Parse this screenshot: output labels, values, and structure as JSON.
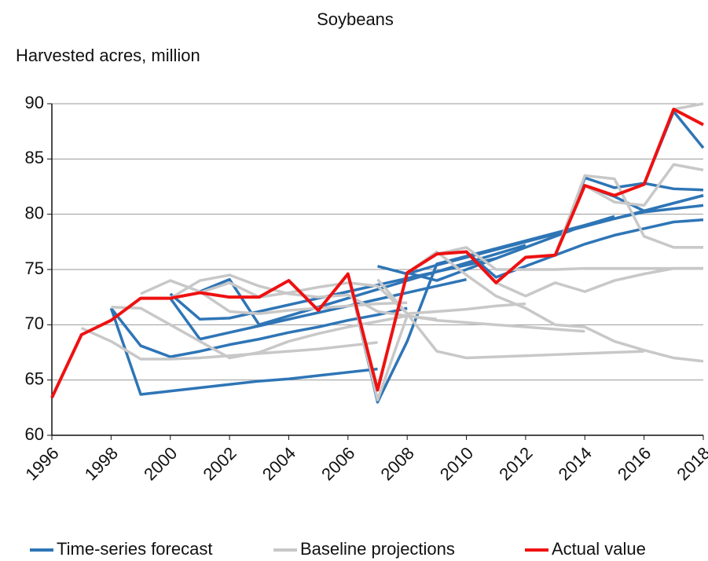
{
  "chart_data": {
    "type": "line",
    "title": "Soybeans",
    "y_label": "Harvested acres, million",
    "x": [
      1996,
      1997,
      1998,
      1999,
      2000,
      2001,
      2002,
      2003,
      2004,
      2005,
      2006,
      2007,
      2008,
      2009,
      2010,
      2011,
      2012,
      2013,
      2014,
      2015,
      2016,
      2017,
      2018
    ],
    "xlim": [
      1996,
      2018
    ],
    "xticks": [
      1996,
      1998,
      2000,
      2002,
      2004,
      2006,
      2008,
      2010,
      2012,
      2014,
      2016,
      2018
    ],
    "ylim": [
      60,
      90
    ],
    "yticks": [
      60,
      65,
      70,
      75,
      80,
      85,
      90
    ],
    "grid": true,
    "legend": "bottom",
    "series": [
      {
        "name": "Time-series forecast",
        "color": "#2e75b6",
        "lines": [
          [
            null,
            null,
            71.5,
            63.7,
            64.0,
            64.3,
            64.6,
            64.9,
            65.1,
            65.4,
            65.7,
            66.0,
            null,
            null,
            null,
            null,
            null,
            null,
            null,
            null,
            null,
            null,
            null
          ],
          [
            null,
            null,
            71.5,
            68.1,
            67.1,
            67.6,
            68.2,
            68.7,
            69.3,
            69.8,
            70.4,
            70.9,
            71.5,
            null,
            null,
            null,
            null,
            null,
            null,
            null,
            null,
            null,
            null
          ],
          [
            null,
            null,
            null,
            72.4,
            72.4,
            68.7,
            69.3,
            69.9,
            70.5,
            71.1,
            71.7,
            72.3,
            72.9,
            73.5,
            74.1,
            null,
            null,
            null,
            null,
            null,
            null,
            null,
            null
          ],
          [
            null,
            null,
            null,
            null,
            72.8,
            70.5,
            70.6,
            71.2,
            71.8,
            72.4,
            73.0,
            73.6,
            74.2,
            74.8,
            75.4,
            76.0,
            null,
            null,
            null,
            null,
            null,
            null,
            null
          ],
          [
            null,
            null,
            null,
            null,
            null,
            73.0,
            74.1,
            70.0,
            70.8,
            71.6,
            72.4,
            73.2,
            74.0,
            74.8,
            75.6,
            76.4,
            77.2,
            null,
            null,
            null,
            null,
            null,
            null
          ],
          [
            null,
            null,
            null,
            null,
            null,
            null,
            null,
            null,
            null,
            null,
            74.6,
            63.0,
            68.5,
            75.5,
            76.2,
            76.9,
            77.6,
            78.3,
            79.0,
            79.6,
            80.2,
            80.5,
            80.8
          ],
          [
            null,
            null,
            null,
            null,
            null,
            null,
            null,
            null,
            null,
            null,
            null,
            75.3,
            74.6,
            75.4,
            76.1,
            76.8,
            77.5,
            78.2,
            78.9,
            79.6,
            80.3,
            81.0,
            81.7
          ],
          [
            null,
            null,
            null,
            null,
            null,
            null,
            null,
            null,
            null,
            null,
            null,
            null,
            74.7,
            74.0,
            75.0,
            76.0,
            77.0,
            78.0,
            79.0,
            79.8,
            null,
            null,
            null
          ],
          [
            null,
            null,
            null,
            null,
            null,
            null,
            null,
            null,
            null,
            null,
            null,
            null,
            null,
            null,
            76.6,
            74.3,
            75.3,
            76.3,
            77.3,
            78.1,
            78.7,
            79.3,
            79.5
          ],
          [
            null,
            null,
            null,
            null,
            null,
            null,
            null,
            null,
            null,
            null,
            null,
            null,
            null,
            null,
            null,
            null,
            null,
            76.3,
            83.3,
            82.4,
            82.8,
            82.3,
            82.2
          ],
          [
            null,
            null,
            null,
            null,
            null,
            null,
            null,
            null,
            null,
            null,
            null,
            null,
            null,
            null,
            null,
            null,
            null,
            null,
            82.6,
            81.6,
            80.3,
            81.0,
            81.7
          ],
          [
            null,
            null,
            null,
            null,
            null,
            null,
            null,
            null,
            null,
            null,
            null,
            null,
            null,
            null,
            null,
            null,
            null,
            null,
            null,
            null,
            82.7,
            89.3,
            86.0
          ]
        ]
      },
      {
        "name": "Baseline projections",
        "color": "#c8c8c8",
        "lines": [
          [
            null,
            69.7,
            68.5,
            66.9,
            66.9,
            67.0,
            67.2,
            67.4,
            67.6,
            67.8,
            68.1,
            68.4,
            null,
            null,
            null,
            null,
            null,
            null,
            null,
            null,
            null,
            null,
            null
          ],
          [
            null,
            null,
            71.6,
            71.5,
            70.0,
            68.5,
            67.0,
            67.5,
            68.5,
            69.2,
            69.8,
            70.3,
            70.8,
            null,
            null,
            null,
            null,
            null,
            null,
            null,
            null,
            null,
            null
          ],
          [
            null,
            null,
            null,
            72.8,
            74.0,
            73.0,
            71.2,
            71.0,
            71.3,
            71.5,
            71.7,
            71.9,
            72.0,
            null,
            null,
            null,
            null,
            null,
            null,
            null,
            null,
            null,
            null
          ],
          [
            null,
            null,
            null,
            null,
            72.4,
            74.0,
            74.5,
            73.5,
            72.8,
            72.5,
            72.7,
            71.2,
            70.8,
            70.5,
            null,
            null,
            null,
            null,
            null,
            null,
            null,
            null,
            null
          ],
          [
            null,
            null,
            null,
            null,
            null,
            72.9,
            73.8,
            72.5,
            72.9,
            73.4,
            73.8,
            73.5,
            71.0,
            71.2,
            71.4,
            71.7,
            71.9,
            null,
            null,
            null,
            null,
            null,
            null
          ],
          [
            null,
            null,
            null,
            null,
            null,
            null,
            null,
            null,
            null,
            null,
            74.6,
            63.2,
            70.8,
            70.4,
            70.2,
            70.0,
            69.8,
            69.6,
            69.4,
            null,
            null,
            null,
            null
          ],
          [
            null,
            null,
            null,
            null,
            null,
            null,
            null,
            null,
            null,
            null,
            null,
            74.1,
            71.0,
            67.6,
            67.0,
            67.1,
            67.2,
            67.3,
            67.4,
            67.5,
            67.6,
            null,
            null
          ],
          [
            null,
            null,
            null,
            null,
            null,
            null,
            null,
            null,
            null,
            null,
            null,
            null,
            74.7,
            76.6,
            74.5,
            72.6,
            71.5,
            70.0,
            69.8,
            68.5,
            67.7,
            67.0,
            66.7
          ],
          [
            null,
            null,
            null,
            null,
            null,
            null,
            null,
            null,
            null,
            null,
            null,
            null,
            null,
            76.4,
            77.0,
            75.0,
            75.0,
            75.0,
            75.1,
            75.1,
            75.1,
            75.1,
            75.1
          ],
          [
            null,
            null,
            null,
            null,
            null,
            null,
            null,
            null,
            null,
            null,
            null,
            null,
            null,
            null,
            null,
            73.8,
            72.6,
            73.8,
            73.0,
            74.0,
            74.6,
            75.1,
            75.1
          ],
          [
            null,
            null,
            null,
            null,
            null,
            null,
            null,
            null,
            null,
            null,
            null,
            null,
            null,
            null,
            null,
            null,
            null,
            76.3,
            83.5,
            83.2,
            78.0,
            77.0,
            77.0
          ],
          [
            null,
            null,
            null,
            null,
            null,
            null,
            null,
            null,
            null,
            null,
            null,
            null,
            null,
            null,
            null,
            null,
            null,
            null,
            82.6,
            81.1,
            80.8,
            84.5,
            84.0
          ],
          [
            null,
            null,
            null,
            null,
            null,
            null,
            null,
            null,
            null,
            null,
            null,
            null,
            null,
            null,
            null,
            null,
            null,
            null,
            null,
            null,
            82.7,
            89.5,
            90.0
          ]
        ]
      },
      {
        "name": "Actual value",
        "color": "#ee1111",
        "lines": [
          [
            63.4,
            69.1,
            70.4,
            72.4,
            72.4,
            72.9,
            72.5,
            72.5,
            74.0,
            71.3,
            74.6,
            64.1,
            74.7,
            76.4,
            76.6,
            73.8,
            76.1,
            76.3,
            82.6,
            81.7,
            82.7,
            89.5,
            88.1
          ]
        ]
      }
    ]
  }
}
